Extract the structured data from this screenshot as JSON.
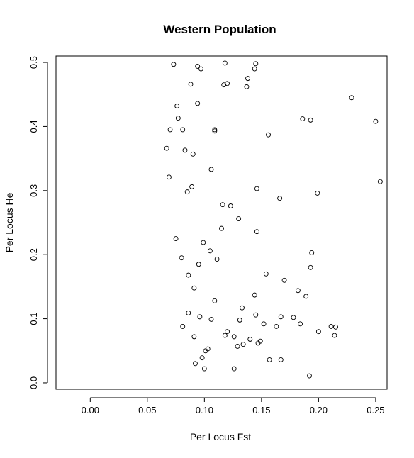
{
  "chart_data": {
    "type": "scatter",
    "title": "Western Population",
    "xlabel": "Per Locus Fst",
    "ylabel": "Per Locus He",
    "xlim": [
      -0.03,
      0.26
    ],
    "ylim": [
      -0.01,
      0.51
    ],
    "x_ticks": [
      0.0,
      0.05,
      0.1,
      0.15,
      0.2,
      0.25
    ],
    "x_tick_labels": [
      "0.00",
      "0.05",
      "0.10",
      "0.15",
      "0.20",
      "0.25"
    ],
    "y_ticks": [
      0.0,
      0.1,
      0.2,
      0.3,
      0.4,
      0.5
    ],
    "y_tick_labels": [
      "0.0",
      "0.1",
      "0.2",
      "0.3",
      "0.4",
      "0.5"
    ],
    "grid": false,
    "legend": "none",
    "marker": "open-circle",
    "point_color": "#000000",
    "points": [
      [
        0.229,
        0.445
      ],
      [
        0.25,
        0.408
      ],
      [
        0.254,
        0.314
      ],
      [
        0.199,
        0.296
      ],
      [
        0.186,
        0.412
      ],
      [
        0.193,
        0.41
      ],
      [
        0.156,
        0.387
      ],
      [
        0.145,
        0.498
      ],
      [
        0.144,
        0.49
      ],
      [
        0.138,
        0.475
      ],
      [
        0.137,
        0.462
      ],
      [
        0.12,
        0.467
      ],
      [
        0.117,
        0.465
      ],
      [
        0.118,
        0.499
      ],
      [
        0.109,
        0.395
      ],
      [
        0.109,
        0.393
      ],
      [
        0.146,
        0.303
      ],
      [
        0.166,
        0.288
      ],
      [
        0.123,
        0.276
      ],
      [
        0.116,
        0.278
      ],
      [
        0.13,
        0.256
      ],
      [
        0.115,
        0.241
      ],
      [
        0.146,
        0.236
      ],
      [
        0.194,
        0.203
      ],
      [
        0.193,
        0.18
      ],
      [
        0.17,
        0.16
      ],
      [
        0.154,
        0.17
      ],
      [
        0.182,
        0.144
      ],
      [
        0.189,
        0.135
      ],
      [
        0.144,
        0.137
      ],
      [
        0.145,
        0.106
      ],
      [
        0.133,
        0.117
      ],
      [
        0.167,
        0.103
      ],
      [
        0.178,
        0.102
      ],
      [
        0.184,
        0.092
      ],
      [
        0.211,
        0.088
      ],
      [
        0.215,
        0.087
      ],
      [
        0.214,
        0.074
      ],
      [
        0.2,
        0.08
      ],
      [
        0.163,
        0.088
      ],
      [
        0.152,
        0.092
      ],
      [
        0.131,
        0.098
      ],
      [
        0.12,
        0.08
      ],
      [
        0.118,
        0.074
      ],
      [
        0.126,
        0.072
      ],
      [
        0.129,
        0.057
      ],
      [
        0.134,
        0.06
      ],
      [
        0.14,
        0.068
      ],
      [
        0.147,
        0.062
      ],
      [
        0.149,
        0.065
      ],
      [
        0.157,
        0.036
      ],
      [
        0.167,
        0.036
      ],
      [
        0.192,
        0.011
      ],
      [
        0.126,
        0.022
      ],
      [
        0.103,
        0.053
      ],
      [
        0.101,
        0.05
      ],
      [
        0.098,
        0.039
      ],
      [
        0.092,
        0.03
      ],
      [
        0.1,
        0.022
      ],
      [
        0.109,
        0.128
      ],
      [
        0.106,
        0.333
      ],
      [
        0.09,
        0.357
      ],
      [
        0.094,
        0.494
      ],
      [
        0.097,
        0.49
      ],
      [
        0.088,
        0.466
      ],
      [
        0.094,
        0.436
      ],
      [
        0.089,
        0.306
      ],
      [
        0.085,
        0.298
      ],
      [
        0.083,
        0.363
      ],
      [
        0.081,
        0.395
      ],
      [
        0.077,
        0.413
      ],
      [
        0.073,
        0.497
      ],
      [
        0.076,
        0.432
      ],
      [
        0.07,
        0.395
      ],
      [
        0.067,
        0.366
      ],
      [
        0.069,
        0.321
      ],
      [
        0.075,
        0.225
      ],
      [
        0.08,
        0.195
      ],
      [
        0.086,
        0.168
      ],
      [
        0.091,
        0.148
      ],
      [
        0.095,
        0.185
      ],
      [
        0.099,
        0.219
      ],
      [
        0.105,
        0.206
      ],
      [
        0.111,
        0.193
      ],
      [
        0.106,
        0.099
      ],
      [
        0.096,
        0.103
      ],
      [
        0.086,
        0.109
      ],
      [
        0.081,
        0.088
      ],
      [
        0.091,
        0.072
      ]
    ]
  }
}
